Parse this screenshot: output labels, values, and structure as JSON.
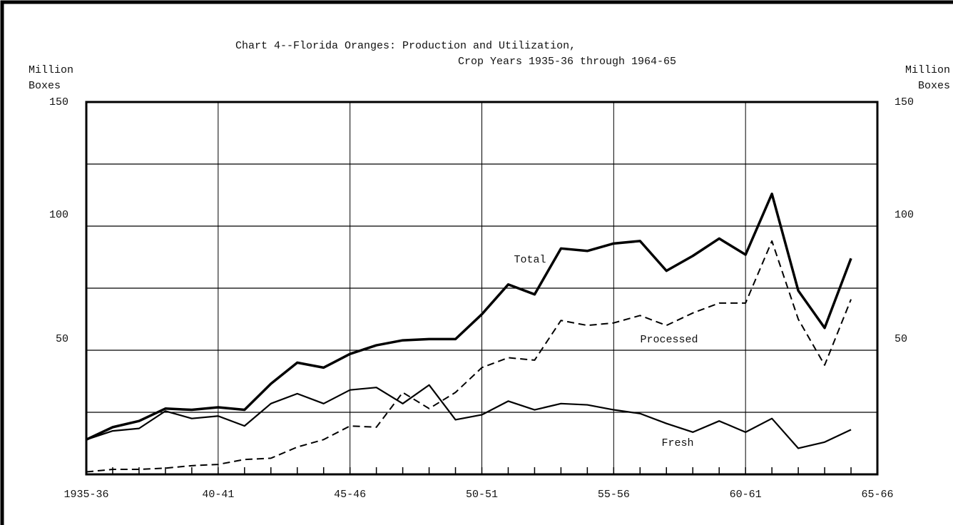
{
  "chart_data": {
    "type": "line",
    "title": "Chart 4--Florida Oranges:  Production and Utilization,",
    "subtitle": "Crop Years 1935-36 through 1964-65",
    "ylabel": [
      "Million",
      "Boxes"
    ],
    "categories": [
      "1935-36",
      null,
      null,
      null,
      null,
      "40-41",
      null,
      null,
      null,
      null,
      "45-46",
      null,
      null,
      null,
      null,
      "50-51",
      null,
      null,
      null,
      null,
      "55-56",
      null,
      null,
      null,
      null,
      "60-61",
      null,
      null,
      null,
      null,
      "65-66"
    ],
    "ylim": [
      0,
      150
    ],
    "yticks": [
      50,
      100,
      150
    ],
    "y2lim": [
      0,
      150
    ],
    "y2ticks": [
      50,
      100,
      150
    ],
    "ygrid": [
      25,
      50,
      75,
      100,
      125
    ],
    "grid": true,
    "series": [
      {
        "name": "Total",
        "color": "#000000",
        "dashed": false,
        "values": [
          14,
          19,
          21.5,
          26.5,
          26,
          27,
          26,
          36.5,
          45,
          43,
          48.5,
          52,
          54,
          54.5,
          54.5,
          64.5,
          76.5,
          72.5,
          91,
          90,
          93,
          94,
          82,
          88,
          95,
          88.5,
          113,
          74,
          59,
          87,
          null
        ]
      },
      {
        "name": "Processed",
        "color": "#000000",
        "dashed": true,
        "values": [
          1,
          2,
          2,
          2.5,
          3.5,
          4,
          6,
          6.5,
          11,
          14,
          19.5,
          19,
          33,
          26.5,
          33,
          43,
          47,
          46,
          62,
          60,
          61,
          64,
          60,
          65,
          69,
          69,
          94,
          62.5,
          44,
          70.5,
          null
        ]
      },
      {
        "name": "Fresh",
        "color": "#000000",
        "dashed": false,
        "values": [
          14,
          17.5,
          18.5,
          25.5,
          22.5,
          23.5,
          19.5,
          28.5,
          32.5,
          28.5,
          34,
          35,
          28.5,
          36,
          22,
          24,
          29.5,
          26,
          28.5,
          28,
          26,
          24.5,
          20.5,
          17,
          21.5,
          17,
          22.5,
          10.5,
          13,
          18,
          null
        ]
      }
    ]
  }
}
